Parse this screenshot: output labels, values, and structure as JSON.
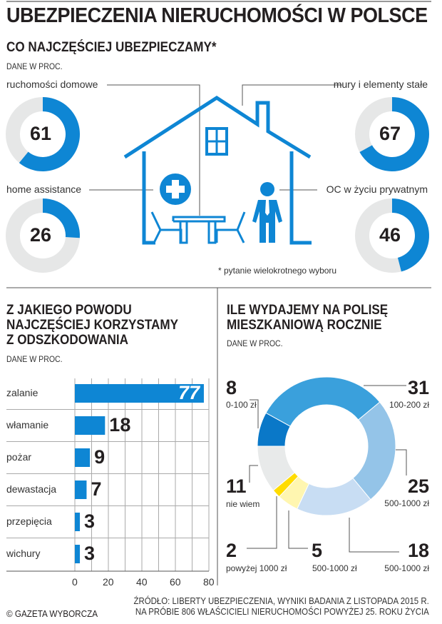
{
  "title": "UBEZPIECZENIA NIERUCHOMOŚCI W POLSCE",
  "colors": {
    "accent": "#0e86d4",
    "gray": "#e6e7e7",
    "text": "#231f20"
  },
  "section1": {
    "title": "CO NAJCZĘŚCIEJ UBEZPIECZAMY*",
    "unit": "DANE W PROC.",
    "footnote": "* pytanie wielokrotnego wyboru",
    "icons": [
      "house-icon",
      "window-icon",
      "medical-cross-icon",
      "table-chairs-icon",
      "businessman-icon"
    ]
  },
  "section2": {
    "title_lines": [
      "Z JAKIEGO POWODU",
      "NAJCZĘŚCIEJ KORZYSTAMY",
      "Z ODSZKODOWANIA"
    ],
    "unit": "DANE W PROC."
  },
  "section3": {
    "title_lines": [
      "ILE WYDAJEMY NA POLISĘ",
      "MIESZKANIOWĄ ROCZNIE"
    ],
    "unit": "DANE W PROC."
  },
  "footer": {
    "copyright": "© GAZETA WYBORCZA",
    "source_lines": [
      "ŹRÓDŁO: LIBERTY UBEZPIECZENIA, WYNIKI BADANIA Z LISTOPADA 2015 R.",
      "NA PRÓBIE 806 WŁAŚCICIELI NIERUCHOMOŚCI POWYŻEJ 25. ROKU ŻYCIA"
    ]
  },
  "chart_data": [
    {
      "type": "pie",
      "subtype": "gauge-rings",
      "max": 100,
      "categories": [
        "ruchomości domowe",
        "mury i elementy stałe",
        "home assistance",
        "OC w życiu prywatnym"
      ],
      "values": [
        61,
        67,
        26,
        46
      ],
      "value_labels": [
        "61",
        "67",
        "26",
        "46"
      ]
    },
    {
      "type": "bar",
      "orientation": "horizontal",
      "categories": [
        "zalanie",
        "włamanie",
        "pożar",
        "dewastacja",
        "przepięcia",
        "wichury"
      ],
      "values": [
        77,
        18,
        9,
        7,
        3,
        3
      ],
      "value_labels": [
        "77",
        "18",
        "9",
        "7",
        "3",
        "3"
      ],
      "xlim": [
        0,
        80
      ],
      "xticks": [
        "0",
        "20",
        "40",
        "60",
        "80"
      ],
      "grid": true
    },
    {
      "type": "pie",
      "subtype": "donut",
      "categories": [
        "0-100 zł",
        "100-200 zł",
        "500-1000 zł",
        "500-1000 zł",
        "500-1000 zł",
        "powyżej 1000 zł",
        "nie wiem"
      ],
      "values": [
        8,
        31,
        25,
        18,
        5,
        2,
        11
      ],
      "value_labels": [
        "8",
        "31",
        "25",
        "18",
        "5",
        "2",
        "11"
      ],
      "colors": [
        "#0a78c8",
        "#3aa0dc",
        "#94c4e8",
        "#c8ddf3",
        "#fff6b0",
        "#ffdc00",
        "#e8eaea"
      ]
    }
  ]
}
